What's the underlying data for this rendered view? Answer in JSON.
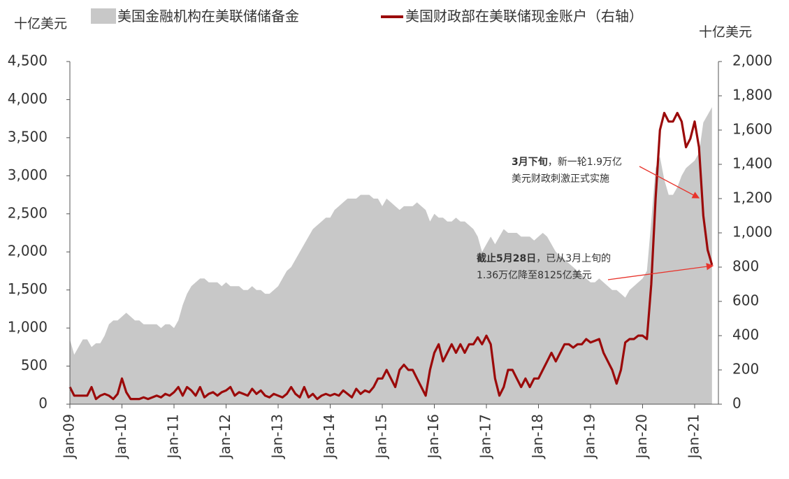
{
  "chart_data": {
    "type": "area_line",
    "y_unit": "十亿美元",
    "y2_unit": "十亿美元",
    "categories": [
      "Jan-09",
      null,
      null,
      null,
      null,
      null,
      null,
      null,
      null,
      null,
      null,
      null,
      "Jan-10",
      null,
      null,
      null,
      null,
      null,
      null,
      null,
      null,
      null,
      null,
      null,
      "Jan-11",
      null,
      null,
      null,
      null,
      null,
      null,
      null,
      null,
      null,
      null,
      null,
      "Jan-12",
      null,
      null,
      null,
      null,
      null,
      null,
      null,
      null,
      null,
      null,
      null,
      "Jan-13",
      null,
      null,
      null,
      null,
      null,
      null,
      null,
      null,
      null,
      null,
      null,
      "Jan-14",
      null,
      null,
      null,
      null,
      null,
      null,
      null,
      null,
      null,
      null,
      null,
      "Jan-15",
      null,
      null,
      null,
      null,
      null,
      null,
      null,
      null,
      null,
      null,
      null,
      "Jan-16",
      null,
      null,
      null,
      null,
      null,
      null,
      null,
      null,
      null,
      null,
      null,
      "Jan-17",
      null,
      null,
      null,
      null,
      null,
      null,
      null,
      null,
      null,
      null,
      null,
      "Jan-18",
      null,
      null,
      null,
      null,
      null,
      null,
      null,
      null,
      null,
      null,
      null,
      "Jan-19",
      null,
      null,
      null,
      null,
      null,
      null,
      null,
      null,
      null,
      null,
      null,
      "Jan-20",
      null,
      null,
      null,
      null,
      null,
      null,
      null,
      null,
      null,
      null,
      null,
      "Jan-21",
      null,
      null,
      null,
      null
    ],
    "series": [
      {
        "name": "美国金融机构在美联储储备金",
        "color": "#c8c8c8",
        "kind": "area",
        "values": [
          850,
          650,
          750,
          850,
          850,
          750,
          800,
          800,
          900,
          1050,
          1100,
          1100,
          1150,
          1200,
          1150,
          1100,
          1100,
          1050,
          1050,
          1050,
          1050,
          1000,
          1050,
          1050,
          1000,
          1100,
          1300,
          1450,
          1550,
          1600,
          1650,
          1650,
          1600,
          1600,
          1600,
          1550,
          1600,
          1550,
          1550,
          1550,
          1500,
          1500,
          1550,
          1500,
          1500,
          1450,
          1450,
          1500,
          1550,
          1650,
          1750,
          1800,
          1900,
          2000,
          2100,
          2200,
          2300,
          2350,
          2400,
          2450,
          2450,
          2550,
          2600,
          2650,
          2700,
          2700,
          2700,
          2750,
          2750,
          2750,
          2700,
          2700,
          2600,
          2700,
          2650,
          2600,
          2550,
          2600,
          2600,
          2600,
          2650,
          2600,
          2550,
          2400,
          2500,
          2450,
          2450,
          2400,
          2400,
          2450,
          2400,
          2400,
          2350,
          2300,
          2200,
          2000,
          2100,
          2200,
          2100,
          2200,
          2300,
          2250,
          2250,
          2250,
          2200,
          2200,
          2200,
          2150,
          2200,
          2250,
          2200,
          2100,
          2000,
          1950,
          1900,
          1850,
          1800,
          1750,
          1700,
          1650,
          1600,
          1600,
          1650,
          1600,
          1550,
          1500,
          1500,
          1450,
          1400,
          1500,
          1550,
          1600,
          1650,
          1750,
          2400,
          3100,
          3250,
          2950,
          2750,
          2750,
          2850,
          3000,
          3100,
          3150,
          3200,
          3300,
          3700,
          3800,
          3900
        ]
      },
      {
        "name": "美国财政部在美联储现金账户（右轴）",
        "color": "#9b0a0a",
        "kind": "line",
        "axis": "y2",
        "values": [
          100,
          50,
          50,
          50,
          50,
          100,
          30,
          50,
          60,
          50,
          30,
          60,
          150,
          70,
          30,
          30,
          30,
          40,
          30,
          40,
          50,
          40,
          60,
          50,
          70,
          100,
          50,
          100,
          80,
          50,
          100,
          40,
          60,
          70,
          50,
          70,
          80,
          100,
          50,
          70,
          60,
          50,
          90,
          60,
          80,
          50,
          40,
          60,
          50,
          40,
          60,
          100,
          60,
          40,
          100,
          40,
          60,
          30,
          50,
          60,
          50,
          60,
          50,
          80,
          60,
          40,
          90,
          60,
          80,
          70,
          100,
          150,
          150,
          200,
          150,
          100,
          200,
          230,
          200,
          200,
          150,
          100,
          50,
          200,
          300,
          350,
          250,
          300,
          350,
          300,
          350,
          300,
          350,
          350,
          390,
          350,
          400,
          350,
          150,
          50,
          100,
          200,
          200,
          150,
          100,
          150,
          100,
          150,
          150,
          200,
          250,
          300,
          250,
          300,
          350,
          350,
          330,
          350,
          350,
          380,
          360,
          370,
          380,
          300,
          250,
          200,
          120,
          200,
          360,
          380,
          380,
          400,
          400,
          380,
          700,
          1200,
          1600,
          1700,
          1650,
          1650,
          1700,
          1650,
          1500,
          1550,
          1650,
          1500,
          1100,
          900,
          812.5
        ]
      }
    ],
    "ylim": [
      0,
      4500
    ],
    "yticks": [
      0,
      500,
      {
        "value": 1000,
        "label": "1,000"
      },
      {
        "value": 1500,
        "label": "1,500"
      },
      {
        "value": 2000,
        "label": "2,000"
      },
      {
        "value": 2500,
        "label": "2,500"
      },
      {
        "value": 3000,
        "label": "3,000"
      },
      {
        "value": 3500,
        "label": "3,500"
      },
      {
        "value": 4000,
        "label": "4,000"
      },
      {
        "value": 4500,
        "label": "4,500"
      }
    ],
    "y2lim": [
      0,
      2000
    ],
    "y2ticks": [
      0,
      200,
      400,
      600,
      800,
      {
        "value": 1000,
        "label": "1,000"
      },
      {
        "value": 1200,
        "label": "1,200"
      },
      {
        "value": 1400,
        "label": "1,400"
      },
      {
        "value": 1600,
        "label": "1,600"
      },
      {
        "value": 1800,
        "label": "1,800"
      },
      {
        "value": 2000,
        "label": "2,000"
      }
    ],
    "annotations": [
      {
        "bold": "3月下旬",
        "lines": [
          "，新一轮1.9万亿",
          "美元财政刺激正式实施"
        ]
      },
      {
        "bold": "截止5月28日",
        "lines": [
          "，已从3月上旬的",
          "1.36万亿降至8125亿美元"
        ]
      }
    ]
  }
}
